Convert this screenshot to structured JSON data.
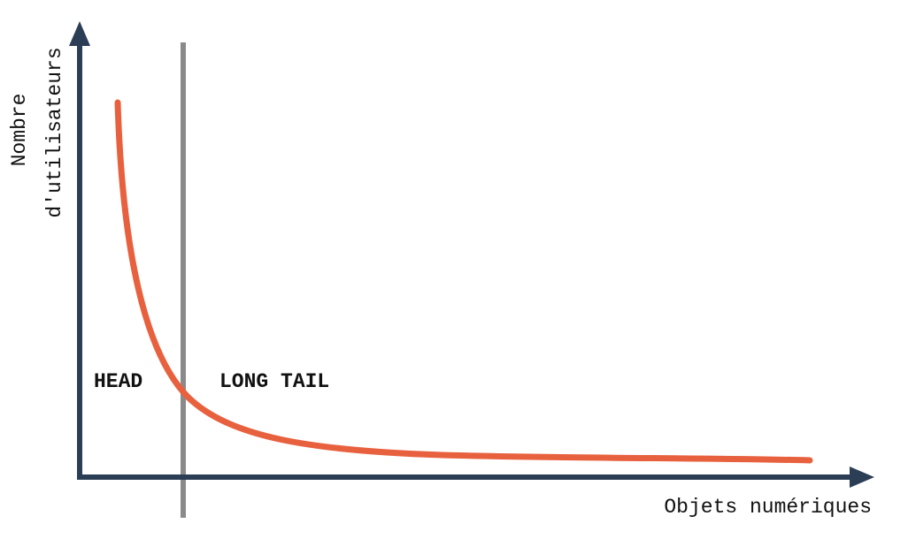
{
  "y_axis_label": [
    "Nombre",
    "d'utilisateurs"
  ],
  "x_axis_label": "Objets numériques",
  "regions": {
    "head": "HEAD",
    "tail": "LONG TAIL"
  }
}
